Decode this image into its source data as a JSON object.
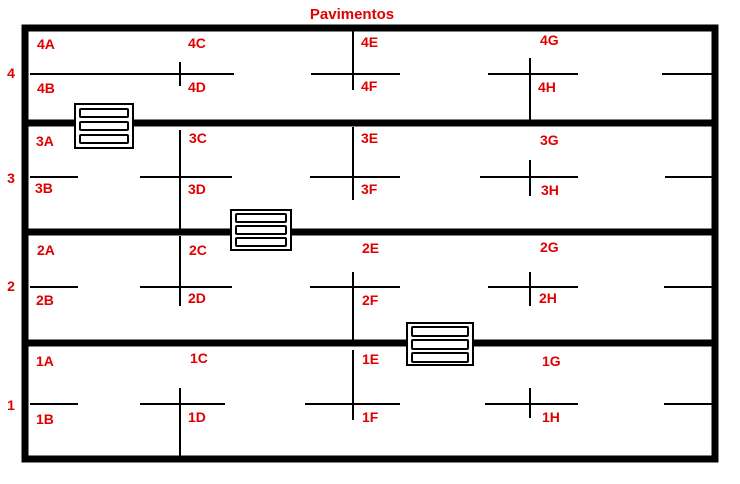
{
  "title": "Pavimentos",
  "colors": {
    "label": "#e00000",
    "wall": "#000000",
    "background": "#ffffff"
  },
  "floors": [
    {
      "number": "4",
      "rooms": [
        "4A",
        "4B",
        "4C",
        "4D",
        "4E",
        "4F",
        "4G",
        "4H"
      ]
    },
    {
      "number": "3",
      "rooms": [
        "3A",
        "3B",
        "3C",
        "3D",
        "3E",
        "3F",
        "3G",
        "3H"
      ]
    },
    {
      "number": "2",
      "rooms": [
        "2A",
        "2B",
        "2C",
        "2D",
        "2E",
        "2F",
        "2G",
        "2H"
      ]
    },
    {
      "number": "1",
      "rooms": [
        "1A",
        "1B",
        "1C",
        "1D",
        "1E",
        "1F",
        "1G",
        "1H"
      ]
    }
  ],
  "stairs_icon": "stairs-icon"
}
